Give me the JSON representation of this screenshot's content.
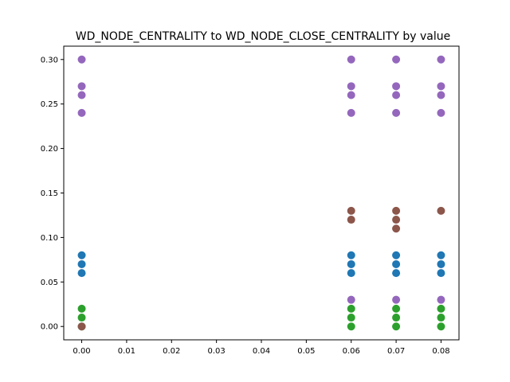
{
  "chart_data": {
    "type": "scatter",
    "title": "WD_NODE_CENTRALITY to WD_NODE_CLOSE_CENTRALITY by value",
    "xlabel": "",
    "ylabel": "",
    "xlim": [
      -0.004,
      0.084
    ],
    "ylim": [
      -0.015,
      0.315
    ],
    "x_ticks": [
      "0.00",
      "0.01",
      "0.02",
      "0.03",
      "0.04",
      "0.05",
      "0.06",
      "0.07",
      "0.08"
    ],
    "y_ticks": [
      "0.00",
      "0.05",
      "0.10",
      "0.15",
      "0.20",
      "0.25",
      "0.30"
    ],
    "grid": false,
    "legend": "none",
    "series": [
      {
        "color": "#1f77b4",
        "points": [
          [
            0.0,
            0.06
          ],
          [
            0.0,
            0.07
          ],
          [
            0.0,
            0.08
          ],
          [
            0.06,
            0.06
          ],
          [
            0.06,
            0.07
          ],
          [
            0.06,
            0.08
          ],
          [
            0.07,
            0.06
          ],
          [
            0.07,
            0.07
          ],
          [
            0.07,
            0.08
          ],
          [
            0.08,
            0.06
          ],
          [
            0.08,
            0.07
          ],
          [
            0.08,
            0.08
          ]
        ]
      },
      {
        "color": "#2ca02c",
        "points": [
          [
            0.0,
            0.0
          ],
          [
            0.0,
            0.01
          ],
          [
            0.0,
            0.02
          ],
          [
            0.06,
            0.0
          ],
          [
            0.06,
            0.01
          ],
          [
            0.06,
            0.02
          ],
          [
            0.07,
            0.0
          ],
          [
            0.07,
            0.01
          ],
          [
            0.07,
            0.02
          ],
          [
            0.08,
            0.0
          ],
          [
            0.08,
            0.01
          ],
          [
            0.08,
            0.02
          ]
        ]
      },
      {
        "color": "#8c564b",
        "points": [
          [
            0.0,
            0.0
          ],
          [
            0.06,
            0.12
          ],
          [
            0.06,
            0.13
          ],
          [
            0.07,
            0.11
          ],
          [
            0.07,
            0.12
          ],
          [
            0.07,
            0.13
          ],
          [
            0.08,
            0.13
          ]
        ]
      },
      {
        "color": "#9467bd",
        "points": [
          [
            0.0,
            0.24
          ],
          [
            0.0,
            0.26
          ],
          [
            0.0,
            0.27
          ],
          [
            0.0,
            0.3
          ],
          [
            0.06,
            0.03
          ],
          [
            0.06,
            0.24
          ],
          [
            0.06,
            0.26
          ],
          [
            0.06,
            0.27
          ],
          [
            0.06,
            0.3
          ],
          [
            0.07,
            0.03
          ],
          [
            0.07,
            0.24
          ],
          [
            0.07,
            0.26
          ],
          [
            0.07,
            0.27
          ],
          [
            0.07,
            0.3
          ],
          [
            0.08,
            0.03
          ],
          [
            0.08,
            0.24
          ],
          [
            0.08,
            0.26
          ],
          [
            0.08,
            0.27
          ],
          [
            0.08,
            0.3
          ]
        ]
      }
    ]
  }
}
